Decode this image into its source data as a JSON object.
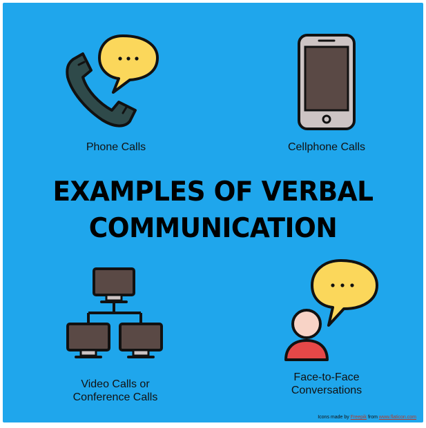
{
  "colors": {
    "background": "#1fa6ec",
    "bubble": "#fbd75b",
    "outline": "#111111",
    "handset": "#2f4a4a",
    "screen": "#5a4945",
    "phone_body": "#cdc4c4",
    "skin": "#f8d3c6",
    "shirt": "#e54848",
    "link": "#b43a2a"
  },
  "title": {
    "line1": "EXAMPLES OF VERBAL",
    "line2": "COMMUNICATION"
  },
  "items": [
    {
      "label": "Phone Calls",
      "icon": "phone-handset-speech-bubble-icon"
    },
    {
      "label": "Cellphone Calls",
      "icon": "cellphone-icon"
    },
    {
      "label_line1": "Video Calls or",
      "label_line2": "Conference Calls",
      "icon": "network-monitors-icon"
    },
    {
      "label_line1": "Face-to-Face",
      "label_line2": "Conversations",
      "icon": "person-speech-bubble-icon"
    }
  ],
  "credit": {
    "prefix": "Icons made by ",
    "author": "Freepik",
    "middle": " from ",
    "site": "www.flaticon.com"
  }
}
